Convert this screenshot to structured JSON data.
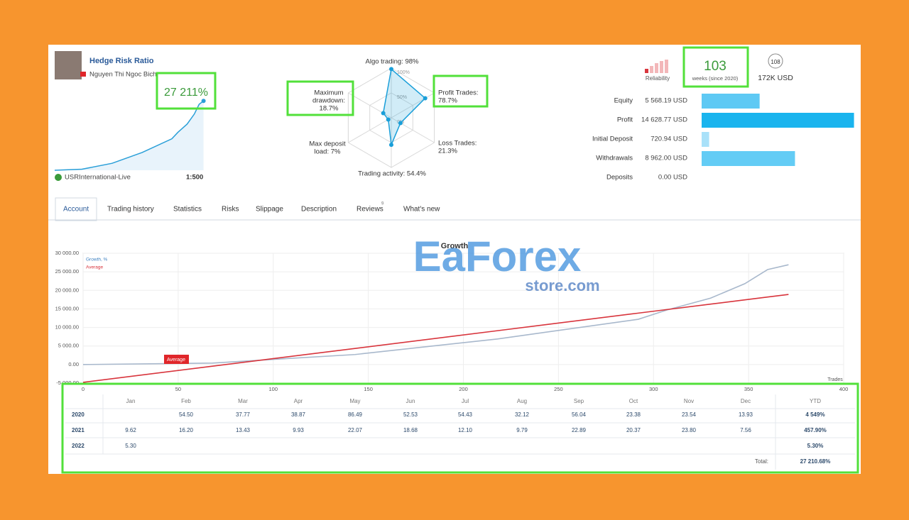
{
  "header": {
    "title": "Hedge Risk Ratio",
    "author": "Nguyen Thi Ngoc Bich",
    "growth": "27 211%",
    "server": "USRInternational-Live",
    "leverage": "1:500"
  },
  "radar": {
    "type": "radar",
    "color": "#1a9fd9",
    "rlim": [
      0,
      100
    ],
    "rings": [
      {
        "value": 0,
        "label": "0%"
      },
      {
        "value": 50,
        "label": "50%"
      },
      {
        "value": 100,
        "label": "100%"
      }
    ],
    "axes": [
      {
        "lines": [
          "Algo trading: 98%"
        ],
        "value": 98
      },
      {
        "lines": [
          "Profit Trades:",
          "78.7%"
        ],
        "value": 78.7
      },
      {
        "lines": [
          "Loss Trades:",
          "21.3%"
        ],
        "value": 21.3
      },
      {
        "lines": [
          "Trading activity: 54.4%"
        ],
        "value": 54.4
      },
      {
        "lines": [
          "Max deposit",
          "load: 7%"
        ],
        "value": 7
      },
      {
        "lines": [
          "Maximum",
          "drawdown:",
          "18.7%"
        ],
        "value": 18.7
      }
    ]
  },
  "stats": {
    "reliability": "Reliability",
    "weeks": "103",
    "weeks_label": "weeks (since 2020)",
    "subscribers": "108",
    "funds": "172K USD"
  },
  "balance": {
    "type": "bar",
    "categories": [
      "Equity",
      "Profit",
      "Initial Deposit",
      "Withdrawals",
      "Deposits"
    ],
    "values": [
      5568.19,
      14628.77,
      720.94,
      8962.0,
      0
    ],
    "value_labels": [
      "5 568.19 USD",
      "14 628.77 USD",
      "720.94 USD",
      "8 962.00 USD",
      "0.00 USD"
    ],
    "colors": [
      "#5ec9f4",
      "#1ab4ee",
      "#a9e1f9",
      "#63ccf5",
      "#63ccf5"
    ],
    "xlim": [
      0,
      15000
    ]
  },
  "tabs": {
    "items": [
      "Account",
      "Trading history",
      "Statistics",
      "Risks",
      "Slippage",
      "Description",
      "Reviews",
      "What's new"
    ],
    "reviews_count": "9"
  },
  "watermark": {
    "brand": "EaForex",
    "site": "store.com"
  },
  "chart_data": {
    "type": "line",
    "title": "Growth",
    "xlabel": "Trades",
    "x": [
      0,
      68,
      143,
      218,
      292,
      307,
      330,
      348,
      360,
      371
    ],
    "series": [
      {
        "name": "Growth, %",
        "color": "#a8b8cc",
        "values": [
          0,
          400,
          2700,
          6900,
          12200,
          14700,
          17900,
          21800,
          25600,
          26900
        ]
      },
      {
        "name": "Average",
        "color": "#d8343c",
        "values": [
          -4800,
          -450,
          4340,
          9130,
          13860,
          14820,
          16290,
          17440,
          18200,
          18900
        ]
      }
    ],
    "xlim": [
      0,
      400
    ],
    "xticks": [
      0,
      50,
      100,
      150,
      200,
      250,
      300,
      350,
      400
    ],
    "ylim": [
      -5000,
      30000
    ],
    "yticks": [
      {
        "value": -5000,
        "label": "-5 000.00"
      },
      {
        "value": 0,
        "label": "0.00"
      },
      {
        "value": 5000,
        "label": "5 000.00"
      },
      {
        "value": 10000,
        "label": "10 000.00"
      },
      {
        "value": 15000,
        "label": "15 000.00"
      },
      {
        "value": 20000,
        "label": "20 000.00"
      },
      {
        "value": 25000,
        "label": "25 000.00"
      },
      {
        "value": 30000,
        "label": "30 000.00"
      }
    ],
    "grid": true,
    "annotation": "Average"
  },
  "table": {
    "header": [
      null,
      "Jan",
      "Feb",
      "Mar",
      "Apr",
      "May",
      "Jun",
      "Jul",
      "Aug",
      "Sep",
      "Oct",
      "Nov",
      "Dec",
      "YTD"
    ],
    "rows": [
      [
        "2020",
        null,
        "54.50",
        "37.77",
        "38.87",
        "86.49",
        "52.53",
        "54.43",
        "32.12",
        "56.04",
        "23.38",
        "23.54",
        "13.93",
        "4 549%"
      ],
      [
        "2021",
        "9.62",
        "16.20",
        "13.43",
        "9.93",
        "22.07",
        "18.68",
        "12.10",
        "9.79",
        "22.89",
        "20.37",
        "23.80",
        "7.56",
        "457.90%"
      ],
      [
        "2022",
        "5.30",
        null,
        null,
        null,
        null,
        null,
        null,
        null,
        null,
        null,
        null,
        null,
        "5.30%"
      ]
    ],
    "total_label": "Total:",
    "total": "27 210.68%"
  }
}
